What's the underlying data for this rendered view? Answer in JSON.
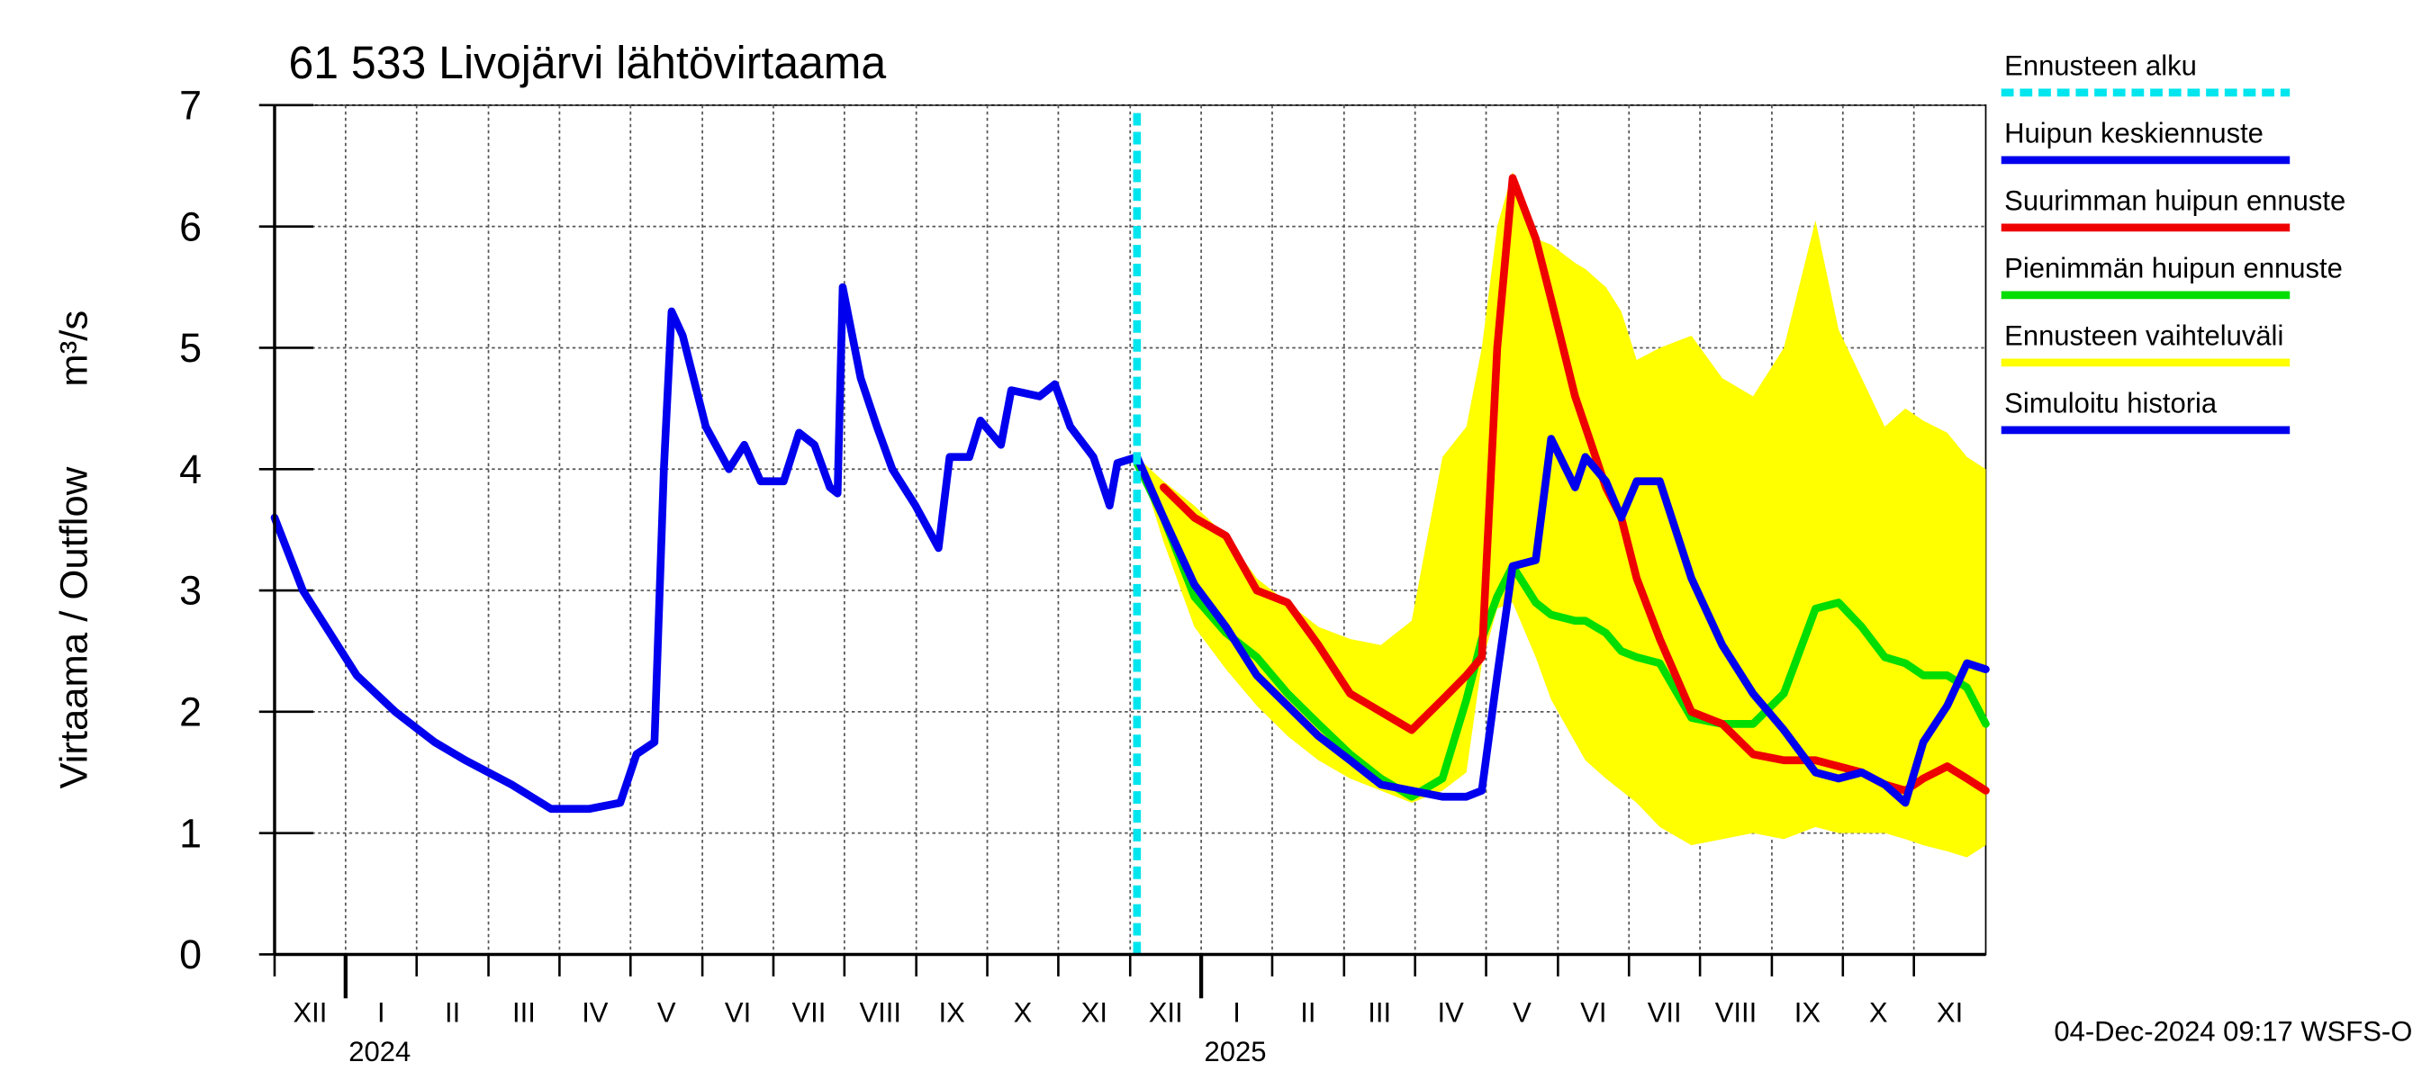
{
  "chart_data": {
    "type": "line",
    "title": "61 533 Livojärvi lähtövirtaama",
    "ylabel": "Virtaama / Outflow",
    "yunit": "m³/s",
    "footer": "04-Dec-2024 09:17 WSFS-O",
    "grid": true,
    "legend": "right",
    "xlim": [
      2023.917,
      2025.917
    ],
    "ylim": [
      0,
      7
    ],
    "yticks": [
      0,
      1,
      2,
      3,
      4,
      5,
      6,
      7
    ],
    "xticks": [
      {
        "value": 2023.917,
        "label": "XII"
      },
      {
        "value": 2024.0,
        "label": "I"
      },
      {
        "value": 2024.083,
        "label": "II"
      },
      {
        "value": 2024.167,
        "label": "III"
      },
      {
        "value": 2024.25,
        "label": "IV"
      },
      {
        "value": 2024.333,
        "label": "V"
      },
      {
        "value": 2024.417,
        "label": "VI"
      },
      {
        "value": 2024.5,
        "label": "VII"
      },
      {
        "value": 2024.583,
        "label": "VIII"
      },
      {
        "value": 2024.667,
        "label": "IX"
      },
      {
        "value": 2024.75,
        "label": "X"
      },
      {
        "value": 2024.833,
        "label": "XI"
      },
      {
        "value": 2024.917,
        "label": "XII"
      },
      {
        "value": 2025.0,
        "label": "I"
      },
      {
        "value": 2025.083,
        "label": "II"
      },
      {
        "value": 2025.167,
        "label": "III"
      },
      {
        "value": 2025.25,
        "label": "IV"
      },
      {
        "value": 2025.333,
        "label": "V"
      },
      {
        "value": 2025.417,
        "label": "VI"
      },
      {
        "value": 2025.5,
        "label": "VII"
      },
      {
        "value": 2025.583,
        "label": "VIII"
      },
      {
        "value": 2025.667,
        "label": "IX"
      },
      {
        "value": 2025.75,
        "label": "X"
      },
      {
        "value": 2025.833,
        "label": "XI"
      }
    ],
    "year_ticks": [
      2024,
      2025
    ],
    "forecast_start": {
      "name": "Ennusteen alku",
      "x": 2024.925,
      "color": "#00e5ee"
    },
    "series": [
      {
        "name": "Huipun keskiennuste",
        "color": "#0000ee",
        "kind": "line",
        "x": [
          2024.925,
          2024.956,
          2024.992,
          2025.029,
          2025.065,
          2025.101,
          2025.137,
          2025.174,
          2025.21,
          2025.246,
          2025.282,
          2025.31,
          2025.328,
          2025.346,
          2025.364,
          2025.391,
          2025.409,
          2025.437,
          2025.449,
          2025.473,
          2025.491,
          2025.509,
          2025.536,
          2025.573,
          2025.609,
          2025.645,
          2025.681,
          2025.718,
          2025.745,
          2025.772,
          2025.799,
          2025.823,
          2025.844,
          2025.872,
          2025.895,
          2025.917
        ],
        "values": [
          4.1,
          3.6,
          3.05,
          2.7,
          2.3,
          2.05,
          1.8,
          1.6,
          1.4,
          1.35,
          1.3,
          1.3,
          1.35,
          2.3,
          3.2,
          3.25,
          4.25,
          3.85,
          4.1,
          3.9,
          3.6,
          3.9,
          3.9,
          3.1,
          2.55,
          2.15,
          1.85,
          1.5,
          1.45,
          1.5,
          1.4,
          1.25,
          1.75,
          2.05,
          2.4,
          2.35
        ]
      },
      {
        "name": "Suurimman huipun ennuste",
        "color": "#ee0000",
        "kind": "line",
        "x": [
          2024.925,
          2024.956,
          2024.992,
          2025.029,
          2025.065,
          2025.101,
          2025.137,
          2025.174,
          2025.21,
          2025.246,
          2025.282,
          2025.31,
          2025.328,
          2025.346,
          2025.364,
          2025.391,
          2025.409,
          2025.437,
          2025.449,
          2025.473,
          2025.491,
          2025.509,
          2025.536,
          2025.573,
          2025.609,
          2025.645,
          2025.681,
          2025.718,
          2025.745,
          2025.772,
          2025.799,
          2025.823,
          2025.844,
          2025.872,
          2025.895,
          2025.917
        ],
        "values": [
          null,
          3.85,
          3.6,
          3.45,
          3.0,
          2.9,
          2.55,
          2.15,
          2.0,
          1.85,
          2.1,
          2.3,
          2.45,
          5.0,
          6.4,
          5.9,
          5.4,
          4.6,
          4.35,
          3.85,
          3.6,
          3.1,
          2.6,
          2.0,
          1.9,
          1.65,
          1.6,
          1.6,
          1.55,
          1.5,
          1.4,
          1.35,
          1.45,
          1.55,
          1.45,
          1.35
        ]
      },
      {
        "name": "Pienimmän huipun ennuste",
        "color": "#00dd00",
        "kind": "line",
        "x": [
          2024.925,
          2024.956,
          2024.992,
          2025.029,
          2025.065,
          2025.101,
          2025.137,
          2025.174,
          2025.21,
          2025.246,
          2025.282,
          2025.31,
          2025.328,
          2025.346,
          2025.364,
          2025.391,
          2025.409,
          2025.437,
          2025.449,
          2025.473,
          2025.491,
          2025.509,
          2025.536,
          2025.573,
          2025.609,
          2025.645,
          2025.681,
          2025.718,
          2025.745,
          2025.772,
          2025.799,
          2025.823,
          2025.844,
          2025.872,
          2025.895,
          2025.917
        ],
        "values": [
          4.05,
          3.6,
          2.95,
          2.65,
          2.45,
          2.15,
          1.9,
          1.65,
          1.45,
          1.3,
          1.45,
          2.1,
          2.6,
          2.95,
          3.2,
          2.9,
          2.8,
          2.75,
          2.75,
          2.65,
          2.5,
          2.45,
          2.4,
          1.95,
          1.9,
          1.9,
          2.15,
          2.85,
          2.9,
          2.7,
          2.45,
          2.4,
          2.3,
          2.3,
          2.2,
          1.9
        ]
      },
      {
        "name": "Ennusteen vaihteluväli",
        "color": "#ffff00",
        "kind": "band",
        "x": [
          2024.925,
          2024.956,
          2024.992,
          2025.029,
          2025.065,
          2025.101,
          2025.137,
          2025.174,
          2025.21,
          2025.246,
          2025.282,
          2025.31,
          2025.328,
          2025.346,
          2025.364,
          2025.391,
          2025.409,
          2025.437,
          2025.449,
          2025.473,
          2025.491,
          2025.509,
          2025.536,
          2025.573,
          2025.609,
          2025.645,
          2025.681,
          2025.718,
          2025.745,
          2025.772,
          2025.799,
          2025.823,
          2025.844,
          2025.872,
          2025.895,
          2025.917
        ],
        "high": [
          4.1,
          3.9,
          3.7,
          3.45,
          3.1,
          2.9,
          2.7,
          2.6,
          2.55,
          2.75,
          4.1,
          4.35,
          5.0,
          6.0,
          6.45,
          5.9,
          5.85,
          5.7,
          5.65,
          5.5,
          5.3,
          4.9,
          5.0,
          5.1,
          4.75,
          4.6,
          5.0,
          6.05,
          5.15,
          4.75,
          4.35,
          4.5,
          4.4,
          4.3,
          4.1,
          4.0
        ],
        "low": [
          4.1,
          3.4,
          2.7,
          2.35,
          2.05,
          1.8,
          1.6,
          1.45,
          1.35,
          1.25,
          1.35,
          1.5,
          2.4,
          2.85,
          2.9,
          2.45,
          2.1,
          1.75,
          1.6,
          1.45,
          1.35,
          1.25,
          1.05,
          0.9,
          0.95,
          1.0,
          0.95,
          1.05,
          1.0,
          1.0,
          1.0,
          0.95,
          0.9,
          0.85,
          0.8,
          0.9
        ]
      },
      {
        "name": "Simuloitu historia",
        "color": "#0000ee",
        "kind": "line",
        "x": [
          2023.917,
          2023.95,
          2023.977,
          2024.013,
          2024.058,
          2024.104,
          2024.14,
          2024.194,
          2024.24,
          2024.285,
          2024.321,
          2024.34,
          2024.361,
          2024.372,
          2024.381,
          2024.394,
          2024.421,
          2024.448,
          2024.466,
          2024.485,
          2024.512,
          2024.53,
          2024.548,
          2024.566,
          2024.575,
          2024.581,
          2024.602,
          2024.621,
          2024.639,
          2024.666,
          2024.693,
          2024.706,
          2024.729,
          2024.742,
          2024.766,
          2024.778,
          2024.811,
          2024.829,
          2024.847,
          2024.874,
          2024.893,
          2024.902,
          2024.925
        ],
        "values": [
          3.6,
          3.0,
          2.7,
          2.3,
          2.0,
          1.75,
          1.6,
          1.4,
          1.2,
          1.2,
          1.25,
          1.65,
          1.75,
          4.0,
          5.3,
          5.1,
          4.35,
          4.0,
          4.2,
          3.9,
          3.9,
          4.3,
          4.2,
          3.85,
          3.8,
          5.5,
          4.75,
          4.35,
          4.0,
          3.7,
          3.35,
          4.1,
          4.1,
          4.4,
          4.2,
          4.65,
          4.6,
          4.7,
          4.35,
          4.1,
          3.7,
          4.05,
          4.1
        ]
      }
    ]
  }
}
